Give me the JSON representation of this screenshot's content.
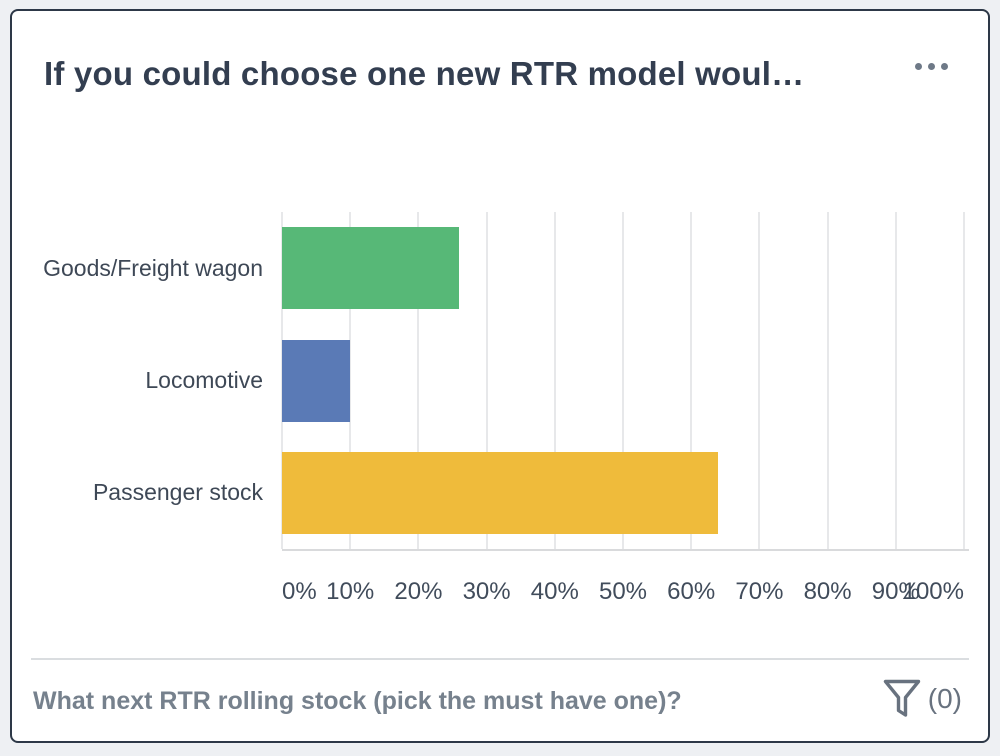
{
  "card": {
    "title": "If you could choose one new RTR model woul…"
  },
  "menu": {
    "more_options_icon": "ellipsis-horizontal-icon"
  },
  "chart_data": {
    "type": "bar",
    "orientation": "horizontal",
    "title": "",
    "xlabel": "",
    "ylabel": "",
    "categories": [
      "Goods/Freight wagon",
      "Locomotive",
      "Passenger stock"
    ],
    "values": [
      26,
      10,
      64
    ],
    "unit": "%",
    "xlim": [
      0,
      100
    ],
    "x_ticks": [
      "0%",
      "10%",
      "20%",
      "30%",
      "40%",
      "50%",
      "60%",
      "70%",
      "80%",
      "90%",
      "100%"
    ],
    "grid": true,
    "legend": false,
    "bar_colors": [
      "#57b877",
      "#5a7ab6",
      "#efbb3b"
    ]
  },
  "footer": {
    "question": "What next RTR rolling stock (pick the must have one)?",
    "filter_icon": "funnel-icon",
    "filter_count_label": "(0)"
  },
  "colors": {
    "card_border": "#2d3847",
    "page_background": "#eef0f3",
    "title_text": "#333e50",
    "axis_text": "#414c5b",
    "footer_text": "#76818d",
    "icon_gray": "#68727f"
  }
}
